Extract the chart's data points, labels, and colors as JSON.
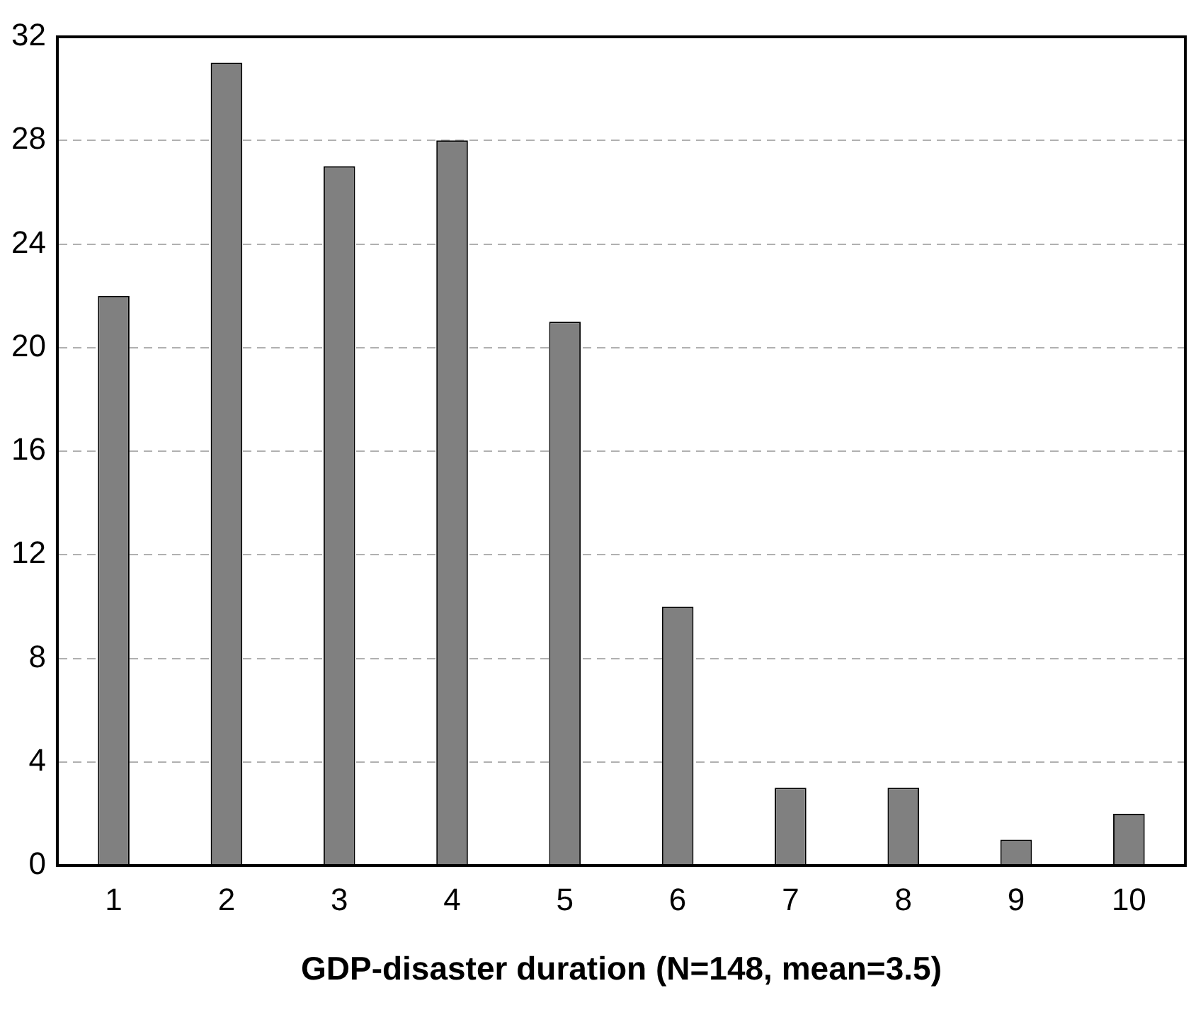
{
  "chart_data": {
    "type": "bar",
    "xlabel": "GDP-disaster duration (N=148, mean=3.5)",
    "categories": [
      "1",
      "2",
      "3",
      "4",
      "5",
      "6",
      "7",
      "8",
      "9",
      "10"
    ],
    "values": [
      22,
      31,
      27,
      28,
      21,
      10,
      3,
      3,
      1,
      2
    ],
    "color": "#808080",
    "ylim": [
      0,
      32
    ],
    "yticks": [
      0,
      4,
      8,
      12,
      16,
      20,
      24,
      28,
      32
    ],
    "grid": "y",
    "legend": false
  }
}
